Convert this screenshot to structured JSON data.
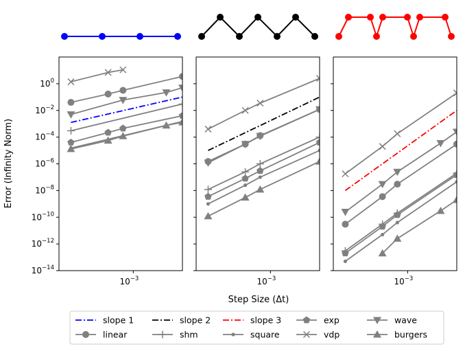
{
  "chart_data": [
    {
      "type": "line",
      "scale": "log-log",
      "xlim": [
        0.00025,
        0.0025
      ],
      "ylim": [
        1e-14,
        100
      ],
      "x": [
        0.0003125,
        0.000625,
        0.00125,
        0.0025
      ],
      "stencil_marker": "blue circles on a horizontal line",
      "series": [
        {
          "name": "slope 1",
          "style": "dashdot",
          "color": "#0000ff",
          "x": [
            0.0003125,
            0.0025
          ],
          "y": [
            0.00125,
            0.1
          ]
        },
        {
          "name": "vdp",
          "marker": "x",
          "x": [
            0.0003125,
            0.000625,
            0.000825
          ],
          "y": [
            1.4,
            7,
            11
          ]
        },
        {
          "name": "linear",
          "marker": "circle",
          "x": [
            0.0003125,
            0.000625,
            0.000825,
            0.0025
          ],
          "y": [
            0.04,
            0.17,
            0.32,
            3.5
          ]
        },
        {
          "name": "wave",
          "marker": "triangle-down",
          "x": [
            0.0003125,
            0.000825,
            0.00185,
            0.0025
          ],
          "y": [
            0.005,
            0.06,
            0.22,
            0.5
          ]
        },
        {
          "name": "shm",
          "marker": "plus",
          "x": [
            0.0003125,
            0.0025
          ],
          "y": [
            0.0003,
            0.03
          ]
        },
        {
          "name": "exp",
          "marker": "pentagon",
          "x": [
            0.0003125,
            0.000625,
            0.000825,
            0.0025
          ],
          "y": [
            4e-05,
            0.00022,
            0.00045,
            0.004
          ]
        },
        {
          "name": "square",
          "marker": "point",
          "x": [
            0.0003125,
            0.0025
          ],
          "y": [
            1.5e-05,
            0.0015
          ]
        },
        {
          "name": "burgers",
          "marker": "triangle-up",
          "x": [
            0.0003125,
            0.000625,
            0.000825,
            0.00185,
            0.0025
          ],
          "y": [
            1.3e-05,
            5.5e-05,
            0.00012,
            0.00075,
            0.0013
          ]
        }
      ]
    },
    {
      "type": "line",
      "scale": "log-log",
      "xlim": [
        0.00025,
        0.0025
      ],
      "ylim": [
        1e-14,
        100
      ],
      "stencil_marker": "black zigzag with circles",
      "series": [
        {
          "name": "slope 2",
          "style": "dashdot",
          "color": "#000000",
          "x": [
            0.0003125,
            0.0025
          ],
          "y": [
            1e-05,
            0.1
          ]
        },
        {
          "name": "vdp",
          "marker": "x",
          "x": [
            0.0003125,
            0.000625,
            0.000825,
            0.0025
          ],
          "y": [
            0.0004,
            0.01,
            0.035,
            2.5
          ]
        },
        {
          "name": "linear",
          "marker": "circle",
          "x": [
            0.0003125,
            0.000625,
            0.000825,
            0.0025
          ],
          "y": [
            1.5e-06,
            3e-05,
            0.00013,
            0.012
          ]
        },
        {
          "name": "wave",
          "marker": "triangle-down",
          "x": [
            0.0003125,
            0.000625,
            0.000825,
            0.0025
          ],
          "y": [
            1.2e-06,
            3e-05,
            0.00012,
            0.012
          ]
        },
        {
          "name": "shm",
          "marker": "plus",
          "x": [
            0.0003125,
            0.000625,
            0.000825,
            0.0025
          ],
          "y": [
            1.2e-08,
            2.5e-07,
            1e-06,
            0.0001
          ]
        },
        {
          "name": "exp",
          "marker": "pentagon",
          "x": [
            0.0003125,
            0.000625,
            0.000825,
            0.0025
          ],
          "y": [
            3.5e-09,
            8e-08,
            3e-07,
            4e-05
          ]
        },
        {
          "name": "square",
          "marker": "point",
          "x": [
            0.0003125,
            0.000625,
            0.000825,
            0.0025
          ],
          "y": [
            1e-09,
            2.5e-08,
            1e-07,
            1e-05
          ]
        },
        {
          "name": "burgers",
          "marker": "triangle-up",
          "x": [
            0.0003125,
            0.000625,
            0.000825,
            0.0025
          ],
          "y": [
            1.2e-10,
            3e-09,
            1.2e-08,
            1.5e-06
          ]
        }
      ]
    },
    {
      "type": "line",
      "scale": "log-log",
      "xlim": [
        0.00025,
        0.0025
      ],
      "ylim": [
        1e-14,
        100
      ],
      "stencil_marker": "red line with circles and dips",
      "series": [
        {
          "name": "slope 3",
          "style": "dashdot",
          "color": "#ff0000",
          "x": [
            0.0003125,
            0.0025
          ],
          "y": [
            1e-08,
            0.01
          ]
        },
        {
          "name": "vdp",
          "marker": "x",
          "x": [
            0.0003125,
            0.000625,
            0.000825,
            0.0025
          ],
          "y": [
            1.8e-07,
            2e-05,
            0.00018,
            0.2
          ]
        },
        {
          "name": "wave",
          "marker": "triangle-down",
          "x": [
            0.0003125,
            0.000625,
            0.000825,
            0.00185,
            0.0025
          ],
          "y": [
            2.5e-10,
            3e-08,
            2.5e-07,
            3.5e-05,
            0.00025
          ]
        },
        {
          "name": "linear",
          "marker": "circle",
          "x": [
            0.0003125,
            0.000625,
            0.000825,
            0.0025
          ],
          "y": [
            3e-11,
            3.5e-09,
            3e-08,
            3e-05
          ]
        },
        {
          "name": "shm",
          "marker": "plus",
          "x": [
            0.0003125,
            0.000625,
            0.000825,
            0.0025
          ],
          "y": [
            3e-13,
            3e-11,
            2e-10,
            2e-07
          ]
        },
        {
          "name": "exp",
          "marker": "pentagon",
          "x": [
            0.0003125,
            0.000625,
            0.000825,
            0.0025
          ],
          "y": [
            2e-13,
            2e-11,
            1.5e-10,
            1.5e-07
          ]
        },
        {
          "name": "square",
          "marker": "point",
          "x": [
            0.0003125,
            0.000625,
            0.000825,
            0.0025
          ],
          "y": [
            5e-14,
            5e-12,
            4e-11,
            4.5e-08
          ]
        },
        {
          "name": "burgers",
          "marker": "triangle-up",
          "x": [
            0.000625,
            0.000825,
            0.00185,
            0.0025
          ],
          "y": [
            2e-13,
            2.5e-12,
            3e-10,
            2e-09
          ]
        }
      ]
    }
  ],
  "axes": {
    "xlabel": "Step Size (Δt)",
    "ylabel": "Error (Infinity Norm)",
    "xtick_labels": [
      {
        "base": "10",
        "exp": "−3"
      }
    ],
    "ytick_labels": [
      {
        "base": "10",
        "exp": "0"
      },
      {
        "base": "10",
        "exp": "−2"
      },
      {
        "base": "10",
        "exp": "−4"
      },
      {
        "base": "10",
        "exp": "−6"
      },
      {
        "base": "10",
        "exp": "−8"
      },
      {
        "base": "10",
        "exp": "−10"
      },
      {
        "base": "10",
        "exp": "−12"
      },
      {
        "base": "10",
        "exp": "−14"
      }
    ]
  },
  "legend": {
    "placement": "bottom-center",
    "items": [
      {
        "label": "slope 1",
        "kind": "dashdot",
        "color": "#0000ff"
      },
      {
        "label": "linear",
        "kind": "circle",
        "color": "#808080"
      },
      {
        "label": "slope 2",
        "kind": "dashdot",
        "color": "#000000"
      },
      {
        "label": "shm",
        "kind": "plus",
        "color": "#808080"
      },
      {
        "label": "slope 3",
        "kind": "dashdot",
        "color": "#ff0000"
      },
      {
        "label": "square",
        "kind": "point",
        "color": "#808080"
      },
      {
        "label": "exp",
        "kind": "pentagon",
        "color": "#808080"
      },
      {
        "label": "vdp",
        "kind": "x",
        "color": "#808080"
      },
      {
        "label": "wave",
        "kind": "triangle-down",
        "color": "#808080"
      },
      {
        "label": "burgers",
        "kind": "triangle-up",
        "color": "#808080"
      }
    ]
  },
  "colors": {
    "series": "#808080",
    "slope1": "#0000ff",
    "slope2": "#000000",
    "slope3": "#ff0000"
  }
}
